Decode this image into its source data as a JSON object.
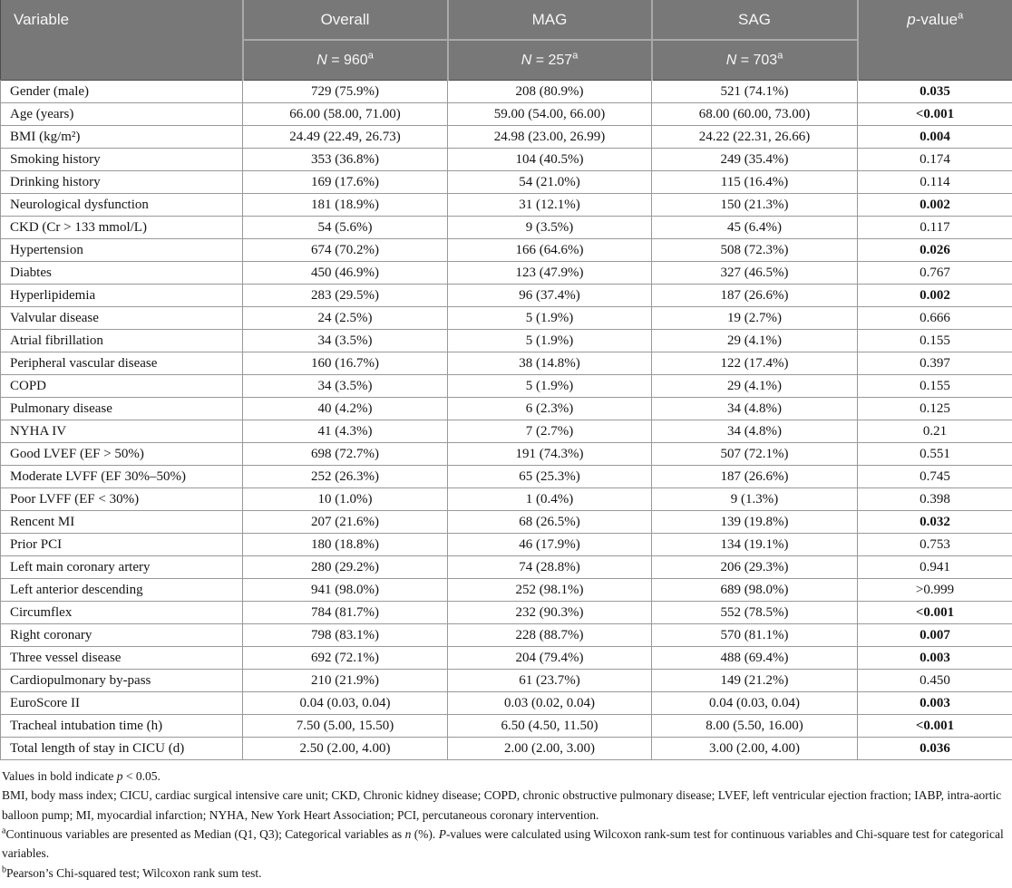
{
  "header": {
    "variable": "Variable",
    "groups": [
      {
        "label": "Overall",
        "n_symbol": "N",
        "n_rest": " = 960",
        "sup": "a"
      },
      {
        "label": "MAG",
        "n_symbol": "N",
        "n_rest": " = 257",
        "sup": "a"
      },
      {
        "label": "SAG",
        "n_symbol": "N",
        "n_rest": " = 703",
        "sup": "a"
      }
    ],
    "pvalue": {
      "italic": "p",
      "rest": "-value",
      "sup": "a"
    }
  },
  "rows": [
    {
      "variable": "Gender (male)",
      "overall": "729 (75.9%)",
      "mag": "208 (80.9%)",
      "sag": "521 (74.1%)",
      "p": "0.035",
      "p_bold": true
    },
    {
      "variable": "Age (years)",
      "overall": "66.00 (58.00, 71.00)",
      "mag": "59.00 (54.00, 66.00)",
      "sag": "68.00 (60.00, 73.00)",
      "p": "<0.001",
      "p_bold": true
    },
    {
      "variable": "BMI (kg/m²)",
      "overall": "24.49 (22.49, 26.73)",
      "mag": "24.98 (23.00, 26.99)",
      "sag": "24.22 (22.31, 26.66)",
      "p": "0.004",
      "p_bold": true
    },
    {
      "variable": "Smoking history",
      "overall": "353 (36.8%)",
      "mag": "104 (40.5%)",
      "sag": "249 (35.4%)",
      "p": "0.174",
      "p_bold": false
    },
    {
      "variable": "Drinking history",
      "overall": "169 (17.6%)",
      "mag": "54 (21.0%)",
      "sag": "115 (16.4%)",
      "p": "0.114",
      "p_bold": false
    },
    {
      "variable": "Neurological dysfunction",
      "overall": "181 (18.9%)",
      "mag": "31 (12.1%)",
      "sag": "150 (21.3%)",
      "p": "0.002",
      "p_bold": true
    },
    {
      "variable": "CKD (Cr > 133 mmol/L)",
      "overall": "54 (5.6%)",
      "mag": "9 (3.5%)",
      "sag": "45 (6.4%)",
      "p": "0.117",
      "p_bold": false
    },
    {
      "variable": "Hypertension",
      "overall": "674 (70.2%)",
      "mag": "166 (64.6%)",
      "sag": "508 (72.3%)",
      "p": "0.026",
      "p_bold": true
    },
    {
      "variable": "Diabtes",
      "overall": "450 (46.9%)",
      "mag": "123 (47.9%)",
      "sag": "327 (46.5%)",
      "p": "0.767",
      "p_bold": false
    },
    {
      "variable": "Hyperlipidemia",
      "overall": "283 (29.5%)",
      "mag": "96 (37.4%)",
      "sag": "187 (26.6%)",
      "p": "0.002",
      "p_bold": true
    },
    {
      "variable": "Valvular disease",
      "overall": "24 (2.5%)",
      "mag": "5 (1.9%)",
      "sag": "19 (2.7%)",
      "p": "0.666",
      "p_bold": false
    },
    {
      "variable": "Atrial fibrillation",
      "overall": "34 (3.5%)",
      "mag": "5 (1.9%)",
      "sag": "29 (4.1%)",
      "p": "0.155",
      "p_bold": false
    },
    {
      "variable": "Peripheral vascular disease",
      "overall": "160 (16.7%)",
      "mag": "38 (14.8%)",
      "sag": "122 (17.4%)",
      "p": "0.397",
      "p_bold": false
    },
    {
      "variable": "COPD",
      "overall": "34 (3.5%)",
      "mag": "5 (1.9%)",
      "sag": "29 (4.1%)",
      "p": "0.155",
      "p_bold": false
    },
    {
      "variable": "Pulmonary disease",
      "overall": "40 (4.2%)",
      "mag": "6 (2.3%)",
      "sag": "34 (4.8%)",
      "p": "0.125",
      "p_bold": false
    },
    {
      "variable": "NYHA IV",
      "overall": "41 (4.3%)",
      "mag": "7 (2.7%)",
      "sag": "34 (4.8%)",
      "p": "0.21",
      "p_bold": false
    },
    {
      "variable": "Good LVEF (EF > 50%)",
      "overall": "698 (72.7%)",
      "mag": "191 (74.3%)",
      "sag": "507 (72.1%)",
      "p": "0.551",
      "p_bold": false
    },
    {
      "variable": "Moderate LVFF (EF 30%–50%)",
      "overall": "252 (26.3%)",
      "mag": "65 (25.3%)",
      "sag": "187 (26.6%)",
      "p": "0.745",
      "p_bold": false
    },
    {
      "variable": "Poor LVFF (EF < 30%)",
      "overall": "10 (1.0%)",
      "mag": "1 (0.4%)",
      "sag": "9 (1.3%)",
      "p": "0.398",
      "p_bold": false
    },
    {
      "variable": "Rencent MI",
      "overall": "207 (21.6%)",
      "mag": "68 (26.5%)",
      "sag": "139 (19.8%)",
      "p": "0.032",
      "p_bold": true
    },
    {
      "variable": "Prior PCI",
      "overall": "180 (18.8%)",
      "mag": "46 (17.9%)",
      "sag": "134 (19.1%)",
      "p": "0.753",
      "p_bold": false
    },
    {
      "variable": "Left main coronary artery",
      "overall": "280 (29.2%)",
      "mag": "74 (28.8%)",
      "sag": "206 (29.3%)",
      "p": "0.941",
      "p_bold": false
    },
    {
      "variable": "Left anterior descending",
      "overall": "941 (98.0%)",
      "mag": "252 (98.1%)",
      "sag": "689 (98.0%)",
      "p": ">0.999",
      "p_bold": false
    },
    {
      "variable": "Circumflex",
      "overall": "784 (81.7%)",
      "mag": "232 (90.3%)",
      "sag": "552 (78.5%)",
      "p": "<0.001",
      "p_bold": true
    },
    {
      "variable": "Right coronary",
      "overall": "798 (83.1%)",
      "mag": "228 (88.7%)",
      "sag": "570 (81.1%)",
      "p": "0.007",
      "p_bold": true
    },
    {
      "variable": "Three vessel disease",
      "overall": "692 (72.1%)",
      "mag": "204 (79.4%)",
      "sag": "488 (69.4%)",
      "p": "0.003",
      "p_bold": true
    },
    {
      "variable": "Cardiopulmonary by-pass",
      "overall": "210 (21.9%)",
      "mag": "61 (23.7%)",
      "sag": "149 (21.2%)",
      "p": "0.450",
      "p_bold": false
    },
    {
      "variable": "EuroScore II",
      "overall": "0.04 (0.03, 0.04)",
      "mag": "0.03 (0.02, 0.04)",
      "sag": "0.04 (0.03, 0.04)",
      "p": "0.003",
      "p_bold": true
    },
    {
      "variable": "Tracheal intubation time (h)",
      "overall": "7.50 (5.00, 15.50)",
      "mag": "6.50 (4.50, 11.50)",
      "sag": "8.00 (5.50, 16.00)",
      "p": "<0.001",
      "p_bold": true
    },
    {
      "variable": "Total length of stay in CICU (d)",
      "overall": "2.50 (2.00, 4.00)",
      "mag": "2.00 (2.00, 3.00)",
      "sag": "3.00 (2.00, 4.00)",
      "p": "0.036",
      "p_bold": true
    }
  ],
  "footnotes": [
    [
      {
        "t": "Values in bold indicate "
      },
      {
        "t": "p",
        "i": true
      },
      {
        "t": " < 0.05."
      }
    ],
    [
      {
        "t": "BMI, body mass index; CICU, cardiac surgical intensive care unit; CKD, Chronic kidney disease; COPD, chronic obstructive pulmonary disease; LVEF, left ventricular ejection fraction; IABP, intra-aortic balloon pump; MI, myocardial infarction; NYHA, New York Heart Association; PCI, percutaneous coronary intervention."
      }
    ],
    [
      {
        "t": "a",
        "s": true
      },
      {
        "t": "Continuous variables are presented as Median (Q1, Q3); Categorical variables as "
      },
      {
        "t": "n",
        "i": true
      },
      {
        "t": " (%). "
      },
      {
        "t": "P",
        "i": true
      },
      {
        "t": "-values were calculated using Wilcoxon rank-sum test for continuous variables and Chi-square test for categorical variables."
      }
    ],
    [
      {
        "t": "b",
        "s": true
      },
      {
        "t": "Pearson’s Chi-squared test; Wilcoxon rank sum test."
      }
    ]
  ],
  "colors": {
    "header_bg": "#787878",
    "header_divider": "#a9a9a9",
    "row_border": "#999999",
    "outer_border": "#4d4d4d"
  }
}
